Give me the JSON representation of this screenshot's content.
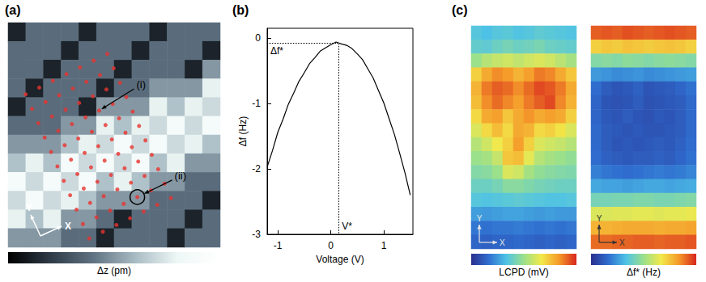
{
  "chart_data": [
    {
      "panel": "(a)",
      "type": "heatmap",
      "tick_labels": false,
      "colorbar_label": "Δz (pm)",
      "color_range": [
        0,
        1
      ],
      "colors": [
        "#000000",
        "#2e3a46",
        "#5f7282",
        "#a9bcc4",
        "#eef8f6",
        "#ffffff"
      ],
      "cells": [
        [
          0.12,
          0.38,
          0.38,
          0.38,
          0.12,
          0.38,
          0.38,
          0.38,
          0.12,
          0.38,
          0.38,
          0.38
        ],
        [
          0.38,
          0.38,
          0.38,
          0.12,
          0.38,
          0.38,
          0.38,
          0.12,
          0.38,
          0.38,
          0.38,
          0.12
        ],
        [
          0.38,
          0.38,
          0.12,
          0.38,
          0.38,
          0.38,
          0.12,
          0.38,
          0.38,
          0.38,
          0.12,
          0.5
        ],
        [
          0.38,
          0.12,
          0.38,
          0.38,
          0.38,
          0.12,
          0.38,
          0.38,
          0.5,
          0.5,
          0.5,
          0.78
        ],
        [
          0.12,
          0.38,
          0.38,
          0.38,
          0.12,
          0.5,
          0.5,
          0.5,
          0.78,
          0.62,
          0.78,
          0.7
        ],
        [
          0.38,
          0.38,
          0.38,
          0.5,
          0.5,
          0.78,
          0.62,
          0.78,
          0.7,
          0.88,
          0.7,
          0.88
        ],
        [
          0.5,
          0.5,
          0.5,
          0.62,
          0.78,
          0.7,
          0.88,
          0.7,
          0.88,
          0.7,
          0.78,
          0.62
        ],
        [
          0.62,
          0.78,
          0.62,
          0.88,
          0.7,
          0.88,
          0.7,
          0.88,
          0.62,
          0.78,
          0.5,
          0.5
        ],
        [
          0.88,
          0.7,
          0.88,
          0.7,
          0.88,
          0.62,
          0.78,
          0.62,
          0.5,
          0.5,
          0.38,
          0.38
        ],
        [
          0.7,
          0.88,
          0.7,
          0.78,
          0.62,
          0.5,
          0.5,
          0.5,
          0.38,
          0.38,
          0.38,
          0.12
        ],
        [
          0.78,
          0.62,
          0.78,
          0.5,
          0.5,
          0.38,
          0.12,
          0.38,
          0.38,
          0.38,
          0.12,
          0.38
        ],
        [
          0.5,
          0.5,
          0.5,
          0.38,
          0.38,
          0.12,
          0.38,
          0.38,
          0.38,
          0.12,
          0.38,
          0.38
        ]
      ],
      "xlim": [
        0,
        12
      ],
      "ylim": [
        0,
        12
      ],
      "points": {
        "type": "scatter",
        "color": "#e8332e",
        "x": [
          4.59,
          4.23,
          3.87,
          3.51,
          3.15,
          2.79,
          2.43,
          2.07,
          1.71,
          1.35,
          0.99,
          5.36,
          5.0,
          4.64,
          4.28,
          3.92,
          3.56,
          3.2,
          2.84,
          2.48,
          2.12,
          1.76,
          6.13,
          5.77,
          5.41,
          5.05,
          4.69,
          4.33,
          3.97,
          3.61,
          3.25,
          2.89,
          2.53,
          6.9,
          6.54,
          6.18,
          5.82,
          5.46,
          5.1,
          4.74,
          4.38,
          4.02,
          3.66,
          3.3,
          7.67,
          7.31,
          6.95,
          6.59,
          6.23,
          5.87,
          5.51,
          5.15,
          4.79,
          4.43,
          4.07,
          8.44,
          8.08,
          7.72,
          7.36,
          7.0,
          6.64,
          6.28,
          5.92,
          5.56,
          5.2,
          4.84,
          9.21,
          8.85,
          8.49,
          8.13,
          7.77,
          7.41,
          7.05,
          6.69,
          6.33,
          5.97,
          5.61
        ],
        "y": [
          11.53,
          10.76,
          9.99,
          9.22,
          8.45,
          7.68,
          6.91,
          6.14,
          5.37,
          4.6,
          3.83,
          11.17,
          10.4,
          9.63,
          8.86,
          8.09,
          7.32,
          6.55,
          5.78,
          5.01,
          4.24,
          3.47,
          10.81,
          10.04,
          9.27,
          8.5,
          7.73,
          6.96,
          6.19,
          5.42,
          4.65,
          3.88,
          3.11,
          10.45,
          9.68,
          8.91,
          8.14,
          7.37,
          6.6,
          5.83,
          5.06,
          4.29,
          3.52,
          2.75,
          10.09,
          9.32,
          8.55,
          7.78,
          7.01,
          6.24,
          5.47,
          4.7,
          3.93,
          3.16,
          2.39,
          9.73,
          8.96,
          8.19,
          7.42,
          6.65,
          5.88,
          5.11,
          4.34,
          3.57,
          2.8,
          2.03,
          9.37,
          8.6,
          7.83,
          7.06,
          6.29,
          5.52,
          4.75,
          3.98,
          3.21,
          2.44,
          1.67
        ]
      },
      "annotations": [
        {
          "text": "(i)",
          "x": 5.15,
          "y": 4.7,
          "marker": "arrow"
        },
        {
          "text": "(ii)",
          "x": 7.31,
          "y": 9.32,
          "marker": "circle"
        }
      ],
      "axis_arrows": {
        "x": "X",
        "y": "Y"
      }
    },
    {
      "panel": "(b)",
      "type": "line",
      "color": "#000000",
      "grid": false,
      "xlabel": "Voltage (V)",
      "ylabel": "Δf (Hz)",
      "x": [
        -1.2,
        -1.1,
        -1.0,
        -0.9,
        -0.8,
        -0.7,
        -0.6,
        -0.5,
        -0.4,
        -0.3,
        -0.2,
        -0.1,
        0.0,
        0.1,
        0.2,
        0.3,
        0.4,
        0.5,
        0.6,
        0.7,
        0.8,
        0.9,
        1.0,
        1.1,
        1.2,
        1.3,
        1.4,
        1.5
      ],
      "values": [
        -1.97,
        -1.72,
        -1.44,
        -1.24,
        -1.01,
        -0.84,
        -0.66,
        -0.53,
        -0.39,
        -0.3,
        -0.2,
        -0.15,
        -0.1,
        -0.06,
        -0.09,
        -0.11,
        -0.16,
        -0.24,
        -0.33,
        -0.47,
        -0.61,
        -0.8,
        -0.99,
        -1.23,
        -1.47,
        -1.76,
        -2.06,
        -2.4
      ],
      "xlim": [
        -1.2,
        1.55
      ],
      "ylim": [
        -3,
        0.15
      ],
      "xticks": [
        -1,
        0,
        1
      ],
      "yticks": [
        -3,
        -2,
        -1,
        0
      ],
      "reference": {
        "x": 0.15,
        "x_label": "V*",
        "y": -0.08,
        "y_label": "Δf*",
        "line_style": "dotted"
      }
    },
    {
      "panel": "(c)",
      "type": "heatmap",
      "tick_labels": false,
      "colorbar_label": "LCPD (mV)",
      "color_range": [
        0,
        1
      ],
      "colors": [
        "#2a2f8f",
        "#2f6fd0",
        "#4fc3e6",
        "#9be08a",
        "#f2e94a",
        "#f59a2a",
        "#d7261e"
      ],
      "cells": [
        [
          0.35,
          0.33,
          0.35,
          0.36,
          0.34,
          0.35,
          0.37,
          0.36,
          0.35,
          0.34
        ],
        [
          0.38,
          0.37,
          0.4,
          0.42,
          0.4,
          0.41,
          0.43,
          0.4,
          0.39,
          0.38
        ],
        [
          0.5,
          0.55,
          0.58,
          0.6,
          0.57,
          0.6,
          0.62,
          0.6,
          0.56,
          0.52
        ],
        [
          0.72,
          0.8,
          0.85,
          0.83,
          0.78,
          0.82,
          0.88,
          0.86,
          0.8,
          0.74
        ],
        [
          0.78,
          0.88,
          0.92,
          0.9,
          0.85,
          0.9,
          0.95,
          0.93,
          0.88,
          0.8
        ],
        [
          0.76,
          0.85,
          0.9,
          0.86,
          0.82,
          0.88,
          0.92,
          0.95,
          0.86,
          0.78
        ],
        [
          0.7,
          0.8,
          0.82,
          0.74,
          0.8,
          0.84,
          0.8,
          0.82,
          0.8,
          0.72
        ],
        [
          0.62,
          0.7,
          0.76,
          0.7,
          0.8,
          0.78,
          0.7,
          0.72,
          0.68,
          0.62
        ],
        [
          0.55,
          0.6,
          0.66,
          0.72,
          0.82,
          0.72,
          0.62,
          0.6,
          0.58,
          0.55
        ],
        [
          0.5,
          0.52,
          0.58,
          0.74,
          0.76,
          0.64,
          0.55,
          0.52,
          0.5,
          0.48
        ],
        [
          0.45,
          0.46,
          0.5,
          0.62,
          0.6,
          0.52,
          0.48,
          0.46,
          0.45,
          0.44
        ],
        [
          0.4,
          0.4,
          0.42,
          0.46,
          0.46,
          0.44,
          0.42,
          0.41,
          0.4,
          0.4
        ],
        [
          0.35,
          0.34,
          0.35,
          0.36,
          0.37,
          0.36,
          0.35,
          0.34,
          0.34,
          0.35
        ],
        [
          0.26,
          0.25,
          0.26,
          0.27,
          0.27,
          0.26,
          0.25,
          0.26,
          0.25,
          0.25
        ],
        [
          0.18,
          0.17,
          0.18,
          0.18,
          0.19,
          0.18,
          0.17,
          0.18,
          0.17,
          0.18
        ],
        [
          0.14,
          0.13,
          0.14,
          0.14,
          0.15,
          0.14,
          0.13,
          0.14,
          0.13,
          0.14
        ]
      ],
      "axis_arrows": {
        "x": "X",
        "y": "Y"
      }
    },
    {
      "type": "heatmap",
      "tick_labels": false,
      "colorbar_label": "Δf* (Hz)",
      "color_range": [
        0,
        1
      ],
      "colors": [
        "#2a2f8f",
        "#2f6fd0",
        "#4fc3e6",
        "#9be08a",
        "#f2e94a",
        "#f59a2a",
        "#d7261e"
      ],
      "cells": [
        [
          0.92,
          0.93,
          0.92,
          0.94,
          0.93,
          0.92,
          0.93,
          0.94,
          0.93,
          0.92
        ],
        [
          0.72,
          0.74,
          0.73,
          0.75,
          0.74,
          0.73,
          0.74,
          0.75,
          0.74,
          0.72
        ],
        [
          0.45,
          0.46,
          0.45,
          0.47,
          0.46,
          0.45,
          0.46,
          0.47,
          0.46,
          0.45
        ],
        [
          0.25,
          0.24,
          0.22,
          0.23,
          0.24,
          0.22,
          0.23,
          0.24,
          0.25,
          0.26
        ],
        [
          0.16,
          0.12,
          0.1,
          0.11,
          0.13,
          0.1,
          0.11,
          0.12,
          0.14,
          0.17
        ],
        [
          0.14,
          0.1,
          0.09,
          0.1,
          0.12,
          0.09,
          0.1,
          0.11,
          0.12,
          0.15
        ],
        [
          0.14,
          0.11,
          0.1,
          0.12,
          0.1,
          0.09,
          0.11,
          0.1,
          0.12,
          0.15
        ],
        [
          0.15,
          0.12,
          0.11,
          0.1,
          0.11,
          0.1,
          0.1,
          0.11,
          0.12,
          0.15
        ],
        [
          0.15,
          0.12,
          0.1,
          0.11,
          0.1,
          0.11,
          0.12,
          0.11,
          0.13,
          0.16
        ],
        [
          0.16,
          0.13,
          0.12,
          0.11,
          0.12,
          0.12,
          0.13,
          0.12,
          0.14,
          0.17
        ],
        [
          0.2,
          0.18,
          0.17,
          0.16,
          0.17,
          0.18,
          0.19,
          0.18,
          0.19,
          0.21
        ],
        [
          0.28,
          0.27,
          0.27,
          0.26,
          0.27,
          0.28,
          0.28,
          0.27,
          0.28,
          0.29
        ],
        [
          0.42,
          0.42,
          0.43,
          0.43,
          0.44,
          0.44,
          0.43,
          0.43,
          0.44,
          0.45
        ],
        [
          0.62,
          0.62,
          0.63,
          0.63,
          0.64,
          0.64,
          0.63,
          0.64,
          0.64,
          0.65
        ],
        [
          0.78,
          0.78,
          0.79,
          0.8,
          0.8,
          0.8,
          0.79,
          0.8,
          0.8,
          0.81
        ],
        [
          0.9,
          0.9,
          0.91,
          0.91,
          0.92,
          0.92,
          0.91,
          0.92,
          0.92,
          0.93
        ]
      ],
      "axis_arrows": {
        "x": "X",
        "y": "Y"
      }
    }
  ]
}
